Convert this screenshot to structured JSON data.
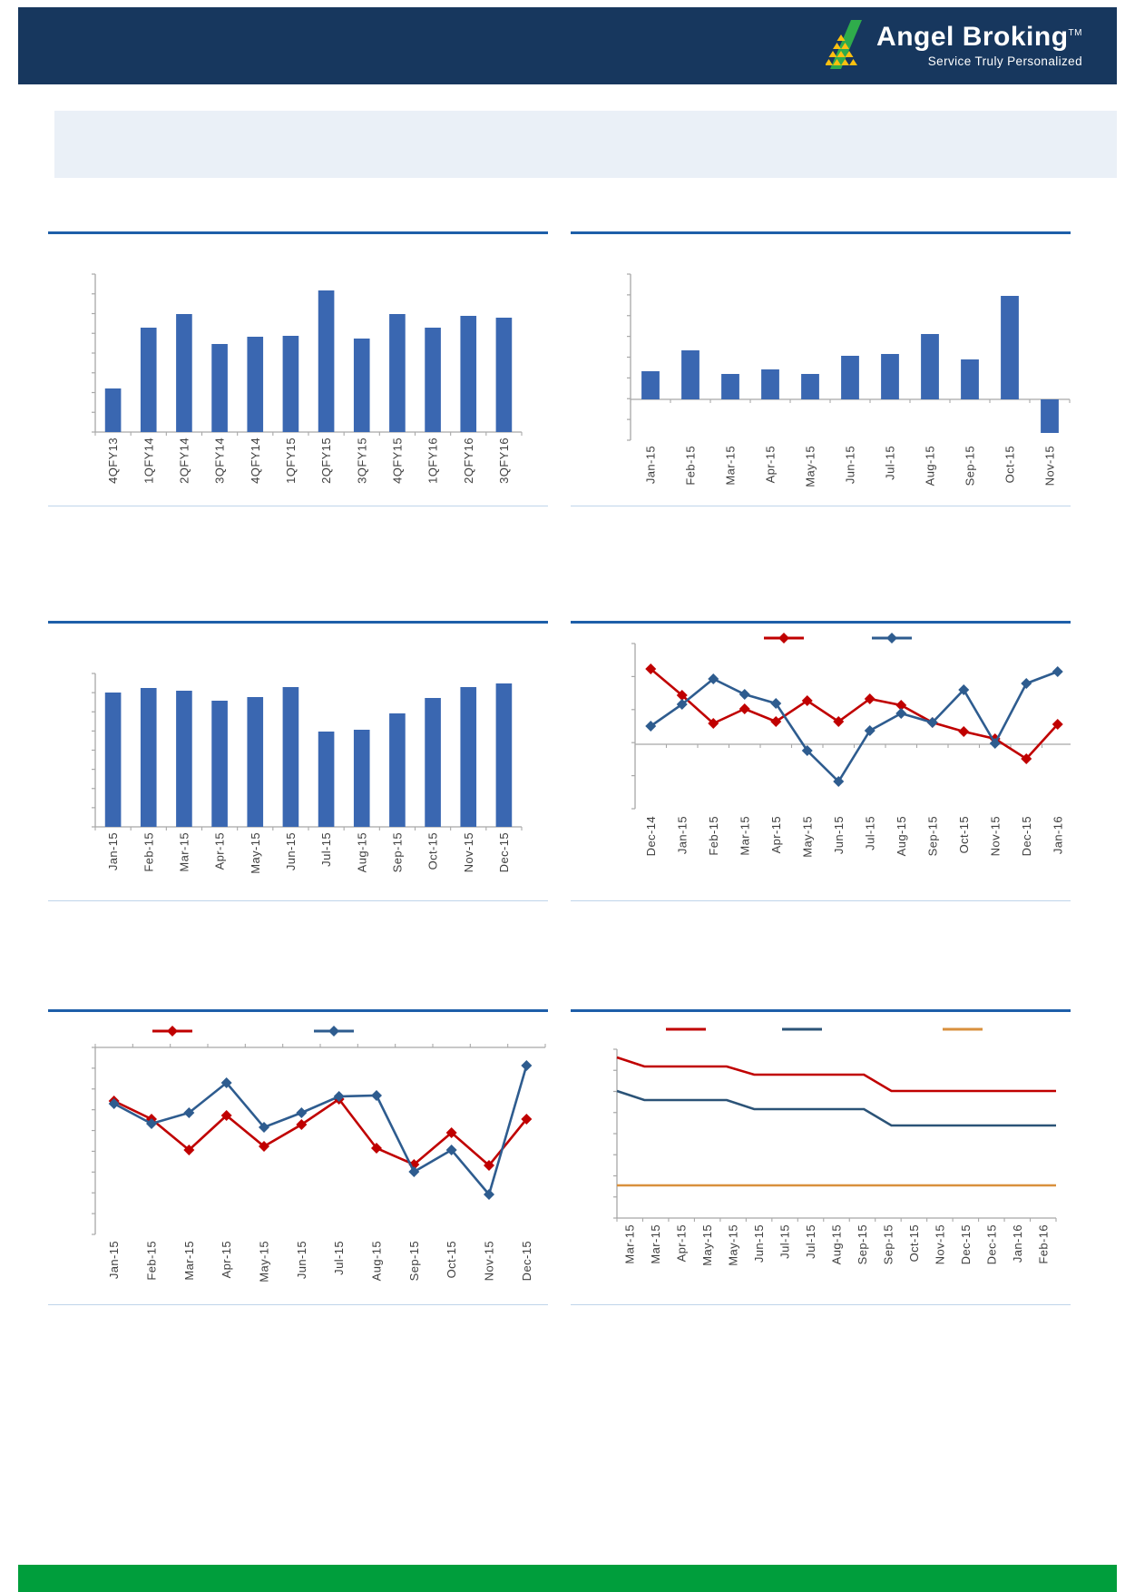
{
  "header": {
    "brand": "Angel Broking",
    "trademark": "TM",
    "tagline": "Service Truly Personalized",
    "bg_color": "#17375E",
    "logo_green": "#2FAC4B",
    "logo_yellow": "#FDC010"
  },
  "banner": {
    "text": "",
    "bg_color": "#EAF0F7"
  },
  "footer": {
    "bg_color": "#009E3C"
  },
  "colors": {
    "separator_blue": "#1E5FA9",
    "thin_rule_blue": "#BFD5EA",
    "bar_blue": "#3A67B1",
    "series_red": "#C00000",
    "series_blue": "#2E5C8F",
    "step_navy": "#2B5377",
    "step_orange": "#D9903D",
    "axis_gray": "#A8A8A8",
    "label_gray": "#3F3F3F"
  },
  "chart_data": [
    {
      "id": "quarterly-bars",
      "type": "bar",
      "title": "",
      "categories": [
        "4QFY13",
        "1QFY14",
        "2QFY14",
        "3QFY14",
        "4QFY14",
        "1QFY15",
        "2QFY15",
        "3QFY15",
        "4QFY15",
        "1QFY16",
        "2QFY16",
        "3QFY16"
      ],
      "values": [
        48,
        115,
        130,
        97,
        105,
        106,
        156,
        103,
        130,
        115,
        128,
        126
      ],
      "bar_color": "#3A67B1",
      "ylim": [
        0,
        174
      ],
      "grid": false,
      "legend_position": "none",
      "xlabel": "",
      "ylabel": ""
    },
    {
      "id": "monthly-net-bars",
      "type": "bar",
      "title": "",
      "categories": [
        "Jan-15",
        "Feb-15",
        "Mar-15",
        "Apr-15",
        "May-15",
        "Jun-15",
        "Jul-15",
        "Aug-15",
        "Sep-15",
        "Oct-15",
        "Nov-15"
      ],
      "values": [
        31,
        54,
        28,
        33,
        28,
        48,
        50,
        72,
        44,
        114,
        -37
      ],
      "bar_color": "#3A67B1",
      "ylim": [
        -45,
        138
      ],
      "grid": false,
      "legend_position": "none",
      "xlabel": "",
      "ylabel": ""
    },
    {
      "id": "monthly-level-bars",
      "type": "bar",
      "title": "",
      "categories": [
        "Jan-15",
        "Feb-15",
        "Mar-15",
        "Apr-15",
        "May-15",
        "Jun-15",
        "Jul-15",
        "Aug-15",
        "Sep-15",
        "Oct-15",
        "Nov-15",
        "Dec-15"
      ],
      "values": [
        148,
        153,
        150,
        139,
        143,
        154,
        105,
        107,
        125,
        142,
        154,
        158
      ],
      "bar_color": "#3A67B1",
      "ylim": [
        0,
        169
      ],
      "grid": false,
      "legend_position": "none",
      "xlabel": "",
      "ylabel": ""
    },
    {
      "id": "two-line-momentum",
      "type": "line",
      "title": "",
      "categories": [
        "Dec-14",
        "Jan-15",
        "Feb-15",
        "Mar-15",
        "Apr-15",
        "May-15",
        "Jun-15",
        "Jul-15",
        "Aug-15",
        "Sep-15",
        "Oct-15",
        "Nov-15",
        "Dec-15",
        "Jan-16"
      ],
      "series": [
        {
          "name": "series-red",
          "label": "",
          "color": "#C00000",
          "values": [
            83,
            54,
            23,
            39,
            25,
            48,
            25,
            50,
            43,
            24,
            14,
            6,
            -16,
            22
          ]
        },
        {
          "name": "series-blue",
          "label": "",
          "color": "#2E5C8F",
          "values": [
            20,
            44,
            72,
            55,
            45,
            -7,
            -41,
            15,
            34,
            24,
            60,
            1,
            67,
            80
          ]
        }
      ],
      "ylim": [
        -71,
        111
      ],
      "grid": false,
      "legend_position": "top",
      "xlabel": "",
      "ylabel": ""
    },
    {
      "id": "two-line-negative",
      "type": "line",
      "title": "",
      "categories": [
        "Jan-15",
        "Feb-15",
        "Mar-15",
        "Apr-15",
        "May-15",
        "Jun-15",
        "Jul-15",
        "Aug-15",
        "Sep-15",
        "Oct-15",
        "Nov-15",
        "Dec-15"
      ],
      "series": [
        {
          "name": "series-red",
          "label": "",
          "color": "#C00000",
          "values": [
            -59,
            -79,
            -113,
            -75,
            -109,
            -85,
            -57,
            -111,
            -129,
            -94,
            -130,
            -79
          ]
        },
        {
          "name": "series-blue",
          "label": "",
          "color": "#2E5C8F",
          "values": [
            -62,
            -84,
            -72,
            -39,
            -88,
            -72,
            -54,
            -53,
            -137,
            -113,
            -162,
            -20
          ]
        }
      ],
      "ylim": [
        -206,
        0
      ],
      "grid": false,
      "legend_position": "top",
      "xlabel": "",
      "ylabel": ""
    },
    {
      "id": "step-lines",
      "type": "line",
      "title": "",
      "categories": [
        "Mar-15",
        "Mar-15",
        "Apr-15",
        "May-15",
        "May-15",
        "Jun-15",
        "Jul-15",
        "Jul-15",
        "Aug-15",
        "Sep-15",
        "Sep-15",
        "Oct-15",
        "Nov-15",
        "Dec-15",
        "Dec-15",
        "Jan-16",
        "Feb-16"
      ],
      "series": [
        {
          "name": "series-red",
          "label": "",
          "color": "#C00000",
          "values": [
            177,
            167,
            167,
            167,
            167,
            158,
            158,
            158,
            158,
            158,
            140,
            140,
            140,
            140,
            140,
            140,
            140
          ]
        },
        {
          "name": "series-navy",
          "label": "",
          "color": "#2B5377",
          "values": [
            140,
            130,
            130,
            130,
            130,
            120,
            120,
            120,
            120,
            120,
            102,
            102,
            102,
            102,
            102,
            102,
            102
          ]
        },
        {
          "name": "series-orange",
          "label": "",
          "color": "#D9903D",
          "values": [
            36,
            36,
            36,
            36,
            36,
            36,
            36,
            36,
            36,
            36,
            36,
            36,
            36,
            36,
            36,
            36,
            36
          ]
        }
      ],
      "ylim": [
        0,
        186
      ],
      "grid": false,
      "legend_position": "top",
      "xlabel": "",
      "ylabel": ""
    }
  ]
}
